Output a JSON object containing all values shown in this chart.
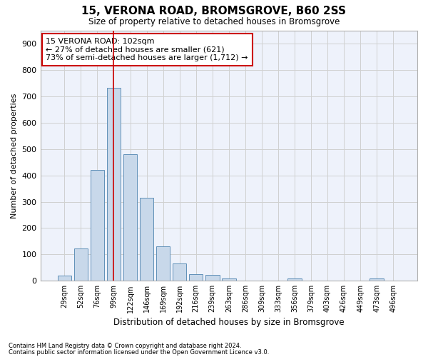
{
  "title": "15, VERONA ROAD, BROMSGROVE, B60 2SS",
  "subtitle": "Size of property relative to detached houses in Bromsgrove",
  "xlabel": "Distribution of detached houses by size in Bromsgrove",
  "ylabel": "Number of detached properties",
  "bar_color": "#c8d8ea",
  "bar_edge_color": "#6090b8",
  "background_color": "#eef2fb",
  "grid_color": "#d0d0d0",
  "categories": [
    "29sqm",
    "52sqm",
    "76sqm",
    "99sqm",
    "122sqm",
    "146sqm",
    "169sqm",
    "192sqm",
    "216sqm",
    "239sqm",
    "263sqm",
    "286sqm",
    "309sqm",
    "333sqm",
    "356sqm",
    "379sqm",
    "403sqm",
    "426sqm",
    "449sqm",
    "473sqm",
    "496sqm"
  ],
  "values": [
    20,
    122,
    420,
    733,
    480,
    315,
    130,
    65,
    25,
    22,
    10,
    0,
    0,
    0,
    8,
    0,
    0,
    0,
    0,
    8,
    0
  ],
  "ylim": [
    0,
    950
  ],
  "yticks": [
    0,
    100,
    200,
    300,
    400,
    500,
    600,
    700,
    800,
    900
  ],
  "property_bar_index": 3,
  "property_line_color": "#cc0000",
  "annotation_line1": "15 VERONA ROAD: 102sqm",
  "annotation_line2": "← 27% of detached houses are smaller (621)",
  "annotation_line3": "73% of semi-detached houses are larger (1,712) →",
  "annotation_box_facecolor": "#ffffff",
  "annotation_box_edgecolor": "#cc0000",
  "footer_line1": "Contains HM Land Registry data © Crown copyright and database right 2024.",
  "footer_line2": "Contains public sector information licensed under the Open Government Licence v3.0."
}
